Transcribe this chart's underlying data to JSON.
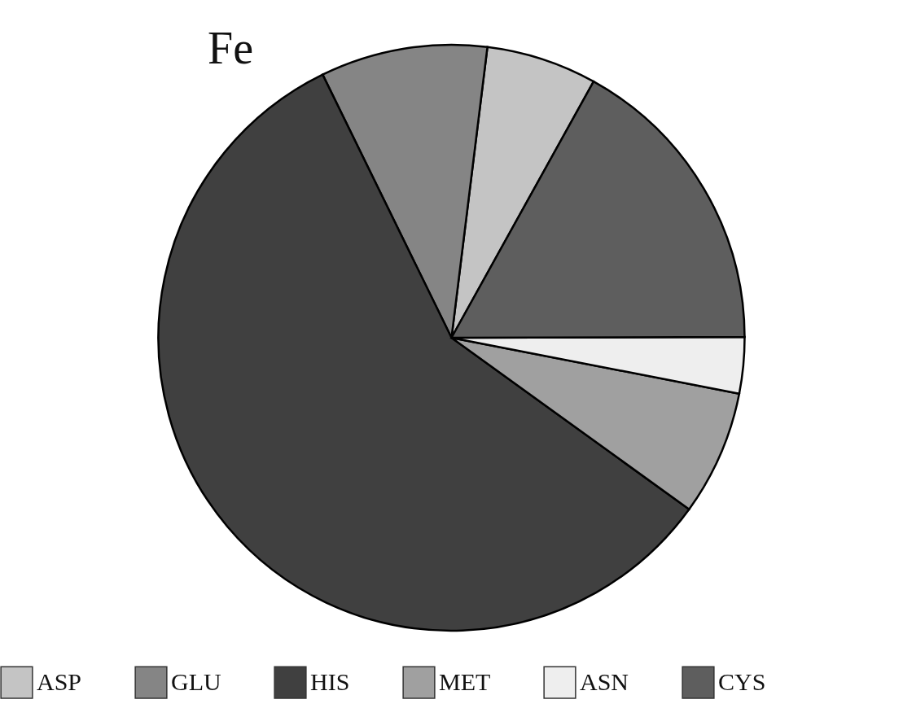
{
  "chart_data": {
    "type": "pie",
    "title": "Fe",
    "categories": [
      "ASP",
      "GLU",
      "HIS",
      "MET",
      "ASN",
      "CYS"
    ],
    "values": [
      6.1,
      9.2,
      57.8,
      6.9,
      3.1,
      16.9
    ],
    "colors": [
      "#c4c4c4",
      "#858585",
      "#404040",
      "#a0a0a0",
      "#eeeeee",
      "#5e5e5e"
    ],
    "legend": "bottom"
  }
}
